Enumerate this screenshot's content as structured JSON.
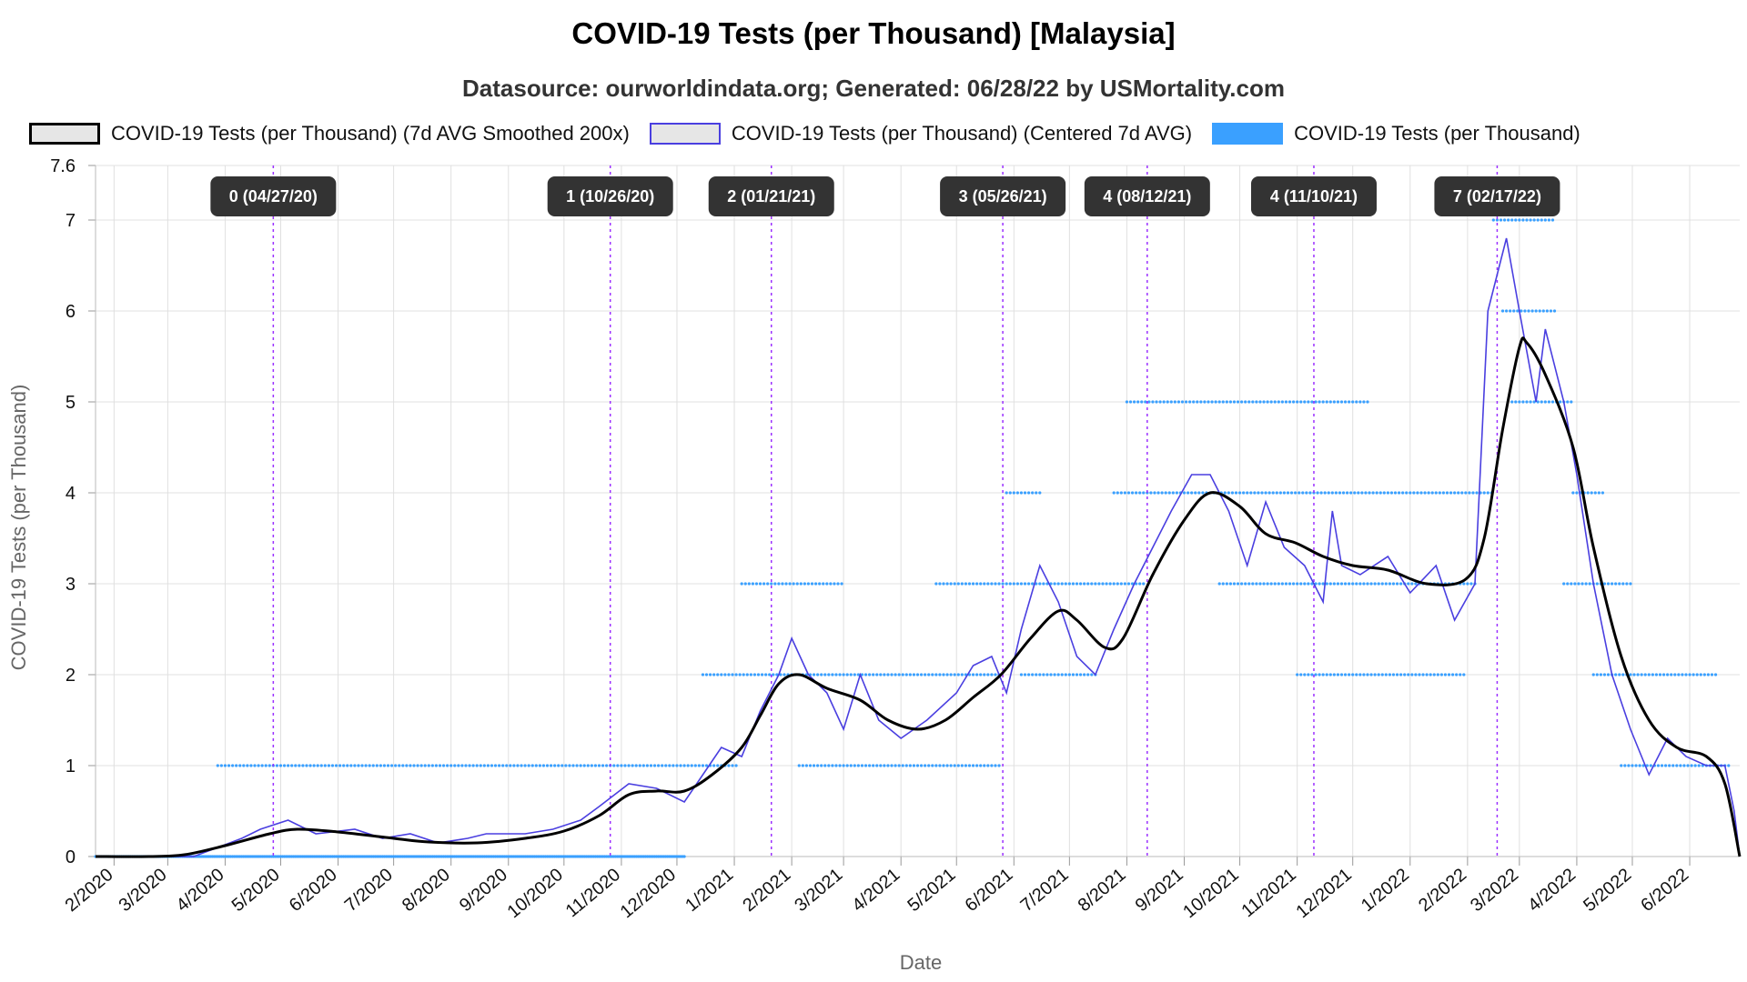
{
  "title": "COVID-19 Tests (per Thousand) [Malaysia]",
  "subtitle": "Datasource: ourworldindata.org; Generated: 06/28/22 by USMortality.com",
  "legend": [
    {
      "label": "COVID-19 Tests (per Thousand) (7d AVG Smoothed 200x)",
      "style": "black"
    },
    {
      "label": "COVID-19 Tests (per Thousand) (Centered 7d AVG)",
      "style": "blue"
    },
    {
      "label": "COVID-19 Tests (per Thousand)",
      "style": "solid"
    }
  ],
  "colors": {
    "smoothed": "#000000",
    "centered": "#4a3fe0",
    "raw": "#3aa0ff",
    "annotation_line": "#9b30ff",
    "annotation_box": "#333333",
    "grid": "#e0e0e0"
  },
  "chart_data": {
    "type": "line",
    "xlabel": "Date",
    "ylabel": "COVID-19 Tests (per Thousand)",
    "x_range": [
      "2020-01-22",
      "2022-06-28"
    ],
    "ylim": [
      0,
      7.6
    ],
    "y_ticks": [
      0,
      1,
      2,
      3,
      4,
      5,
      6,
      7,
      7.6
    ],
    "y_tick_labels": [
      "0",
      "1",
      "2",
      "3",
      "4",
      "5",
      "6",
      "7",
      "7.6"
    ],
    "x_ticks": [
      "2020-02-01",
      "2020-03-01",
      "2020-04-01",
      "2020-05-01",
      "2020-06-01",
      "2020-07-01",
      "2020-08-01",
      "2020-09-01",
      "2020-10-01",
      "2020-11-01",
      "2020-12-01",
      "2021-01-01",
      "2021-02-01",
      "2021-03-01",
      "2021-04-01",
      "2021-05-01",
      "2021-06-01",
      "2021-07-01",
      "2021-08-01",
      "2021-09-01",
      "2021-10-01",
      "2021-11-01",
      "2021-12-01",
      "2022-01-01",
      "2022-02-01",
      "2022-03-01",
      "2022-04-01",
      "2022-05-01",
      "2022-06-01"
    ],
    "x_tick_labels": [
      "2/2020",
      "3/2020",
      "4/2020",
      "5/2020",
      "6/2020",
      "7/2020",
      "8/2020",
      "9/2020",
      "10/2020",
      "11/2020",
      "12/2020",
      "1/2021",
      "2/2021",
      "3/2021",
      "4/2021",
      "5/2021",
      "6/2021",
      "7/2021",
      "8/2021",
      "9/2021",
      "10/2021",
      "11/2021",
      "12/2021",
      "1/2022",
      "2/2022",
      "3/2022",
      "4/2022",
      "5/2022",
      "6/2022"
    ],
    "grid": true,
    "legend_position": "top",
    "series": [
      {
        "name": "COVID-19 Tests (per Thousand) (7d AVG Smoothed 200x)",
        "style": "smooth-line",
        "points": [
          [
            "2020-01-22",
            0
          ],
          [
            "2020-02-20",
            0
          ],
          [
            "2020-03-10",
            0.02
          ],
          [
            "2020-04-01",
            0.12
          ],
          [
            "2020-04-25",
            0.25
          ],
          [
            "2020-05-10",
            0.3
          ],
          [
            "2020-06-01",
            0.27
          ],
          [
            "2020-07-01",
            0.2
          ],
          [
            "2020-07-20",
            0.16
          ],
          [
            "2020-08-15",
            0.15
          ],
          [
            "2020-09-10",
            0.2
          ],
          [
            "2020-10-01",
            0.28
          ],
          [
            "2020-10-20",
            0.45
          ],
          [
            "2020-11-05",
            0.68
          ],
          [
            "2020-11-20",
            0.72
          ],
          [
            "2020-12-05",
            0.72
          ],
          [
            "2020-12-20",
            0.9
          ],
          [
            "2021-01-05",
            1.2
          ],
          [
            "2021-01-15",
            1.55
          ],
          [
            "2021-01-25",
            1.9
          ],
          [
            "2021-02-05",
            2.0
          ],
          [
            "2021-02-20",
            1.85
          ],
          [
            "2021-03-10",
            1.72
          ],
          [
            "2021-03-25",
            1.5
          ],
          [
            "2021-04-10",
            1.4
          ],
          [
            "2021-04-25",
            1.5
          ],
          [
            "2021-05-10",
            1.75
          ],
          [
            "2021-05-25",
            2.0
          ],
          [
            "2021-06-10",
            2.4
          ],
          [
            "2021-06-25",
            2.7
          ],
          [
            "2021-07-05",
            2.6
          ],
          [
            "2021-07-20",
            2.3
          ],
          [
            "2021-07-30",
            2.4
          ],
          [
            "2021-08-15",
            3.1
          ],
          [
            "2021-09-01",
            3.7
          ],
          [
            "2021-09-15",
            4.0
          ],
          [
            "2021-10-01",
            3.85
          ],
          [
            "2021-10-15",
            3.55
          ],
          [
            "2021-10-31",
            3.45
          ],
          [
            "2021-11-15",
            3.3
          ],
          [
            "2021-12-01",
            3.2
          ],
          [
            "2021-12-20",
            3.15
          ],
          [
            "2022-01-10",
            3.0
          ],
          [
            "2022-01-31",
            3.05
          ],
          [
            "2022-02-10",
            3.5
          ],
          [
            "2022-02-20",
            4.7
          ],
          [
            "2022-03-01",
            5.6
          ],
          [
            "2022-03-05",
            5.65
          ],
          [
            "2022-03-15",
            5.3
          ],
          [
            "2022-03-30",
            4.5
          ],
          [
            "2022-04-10",
            3.4
          ],
          [
            "2022-04-25",
            2.2
          ],
          [
            "2022-05-10",
            1.5
          ],
          [
            "2022-05-25",
            1.2
          ],
          [
            "2022-06-10",
            1.1
          ],
          [
            "2022-06-20",
            0.8
          ],
          [
            "2022-06-28",
            0
          ]
        ]
      },
      {
        "name": "COVID-19 Tests (per Thousand) (Centered 7d AVG)",
        "style": "step-line",
        "points": [
          [
            "2020-01-22",
            0
          ],
          [
            "2020-03-15",
            0
          ],
          [
            "2020-03-28",
            0.1
          ],
          [
            "2020-04-10",
            0.2
          ],
          [
            "2020-04-20",
            0.3
          ],
          [
            "2020-05-05",
            0.4
          ],
          [
            "2020-05-20",
            0.25
          ],
          [
            "2020-06-10",
            0.3
          ],
          [
            "2020-06-25",
            0.2
          ],
          [
            "2020-07-10",
            0.25
          ],
          [
            "2020-07-25",
            0.15
          ],
          [
            "2020-08-10",
            0.2
          ],
          [
            "2020-08-20",
            0.25
          ],
          [
            "2020-09-10",
            0.25
          ],
          [
            "2020-09-25",
            0.3
          ],
          [
            "2020-10-10",
            0.4
          ],
          [
            "2020-10-20",
            0.55
          ],
          [
            "2020-11-05",
            0.8
          ],
          [
            "2020-11-20",
            0.75
          ],
          [
            "2020-12-05",
            0.6
          ],
          [
            "2020-12-15",
            0.9
          ],
          [
            "2020-12-25",
            1.2
          ],
          [
            "2021-01-05",
            1.1
          ],
          [
            "2021-01-15",
            1.6
          ],
          [
            "2021-01-25",
            2.0
          ],
          [
            "2021-02-01",
            2.4
          ],
          [
            "2021-02-10",
            2.0
          ],
          [
            "2021-02-20",
            1.8
          ],
          [
            "2021-03-01",
            1.4
          ],
          [
            "2021-03-10",
            2.0
          ],
          [
            "2021-03-20",
            1.5
          ],
          [
            "2021-04-01",
            1.3
          ],
          [
            "2021-04-15",
            1.5
          ],
          [
            "2021-05-01",
            1.8
          ],
          [
            "2021-05-10",
            2.1
          ],
          [
            "2021-05-20",
            2.2
          ],
          [
            "2021-05-28",
            1.8
          ],
          [
            "2021-06-05",
            2.5
          ],
          [
            "2021-06-15",
            3.2
          ],
          [
            "2021-06-25",
            2.8
          ],
          [
            "2021-07-05",
            2.2
          ],
          [
            "2021-07-15",
            2.0
          ],
          [
            "2021-07-25",
            2.5
          ],
          [
            "2021-08-05",
            3.0
          ],
          [
            "2021-08-15",
            3.4
          ],
          [
            "2021-08-25",
            3.8
          ],
          [
            "2021-09-05",
            4.2
          ],
          [
            "2021-09-15",
            4.2
          ],
          [
            "2021-09-25",
            3.8
          ],
          [
            "2021-10-05",
            3.2
          ],
          [
            "2021-10-15",
            3.9
          ],
          [
            "2021-10-25",
            3.4
          ],
          [
            "2021-11-05",
            3.2
          ],
          [
            "2021-11-15",
            2.8
          ],
          [
            "2021-11-20",
            3.8
          ],
          [
            "2021-11-25",
            3.2
          ],
          [
            "2021-12-05",
            3.1
          ],
          [
            "2021-12-20",
            3.3
          ],
          [
            "2022-01-01",
            2.9
          ],
          [
            "2022-01-15",
            3.2
          ],
          [
            "2022-01-25",
            2.6
          ],
          [
            "2022-02-05",
            3.0
          ],
          [
            "2022-02-12",
            6.0
          ],
          [
            "2022-02-22",
            6.8
          ],
          [
            "2022-03-01",
            6.0
          ],
          [
            "2022-03-10",
            5.0
          ],
          [
            "2022-03-15",
            5.8
          ],
          [
            "2022-03-25",
            5.0
          ],
          [
            "2022-04-01",
            4.2
          ],
          [
            "2022-04-10",
            3.0
          ],
          [
            "2022-04-20",
            2.0
          ],
          [
            "2022-04-30",
            1.4
          ],
          [
            "2022-05-10",
            0.9
          ],
          [
            "2022-05-20",
            1.3
          ],
          [
            "2022-05-30",
            1.1
          ],
          [
            "2022-06-10",
            1.0
          ],
          [
            "2022-06-20",
            1.0
          ],
          [
            "2022-06-25",
            0.5
          ],
          [
            "2022-06-28",
            0
          ]
        ]
      },
      {
        "name": "COVID-19 Tests (per Thousand)",
        "style": "dots",
        "bands": [
          {
            "y": 0,
            "from": "2020-01-22",
            "to": "2020-12-05"
          },
          {
            "y": 1,
            "from": "2020-03-28",
            "to": "2021-01-02"
          },
          {
            "y": 1,
            "from": "2021-02-05",
            "to": "2021-05-25"
          },
          {
            "y": 1,
            "from": "2022-04-25",
            "to": "2022-06-22"
          },
          {
            "y": 2,
            "from": "2020-12-15",
            "to": "2021-05-25"
          },
          {
            "y": 2,
            "from": "2021-06-05",
            "to": "2021-07-15"
          },
          {
            "y": 2,
            "from": "2021-11-01",
            "to": "2022-01-31"
          },
          {
            "y": 2,
            "from": "2022-04-10",
            "to": "2022-06-15"
          },
          {
            "y": 3,
            "from": "2021-01-05",
            "to": "2021-03-01"
          },
          {
            "y": 3,
            "from": "2021-04-20",
            "to": "2021-08-10"
          },
          {
            "y": 3,
            "from": "2021-09-20",
            "to": "2022-02-05"
          },
          {
            "y": 3,
            "from": "2022-03-25",
            "to": "2022-04-30"
          },
          {
            "y": 4,
            "from": "2021-05-28",
            "to": "2021-06-15"
          },
          {
            "y": 4,
            "from": "2021-07-25",
            "to": "2022-02-15"
          },
          {
            "y": 4,
            "from": "2022-03-30",
            "to": "2022-04-15"
          },
          {
            "y": 5,
            "from": "2021-08-01",
            "to": "2021-12-10"
          },
          {
            "y": 5,
            "from": "2022-02-25",
            "to": "2022-03-30"
          },
          {
            "y": 6,
            "from": "2022-02-20",
            "to": "2022-03-20"
          },
          {
            "y": 7,
            "from": "2022-02-15",
            "to": "2022-03-20"
          }
        ]
      }
    ],
    "annotations": [
      {
        "date": "2020-04-27",
        "label": "0 (04/27/20)"
      },
      {
        "date": "2020-10-26",
        "label": "1 (10/26/20)"
      },
      {
        "date": "2021-01-21",
        "label": "2 (01/21/21)"
      },
      {
        "date": "2021-05-26",
        "label": "3 (05/26/21)"
      },
      {
        "date": "2021-08-12",
        "label": "4 (08/12/21)"
      },
      {
        "date": "2021-11-10",
        "label": "4 (11/10/21)"
      },
      {
        "date": "2022-02-17",
        "label": "7 (02/17/22)"
      }
    ]
  }
}
